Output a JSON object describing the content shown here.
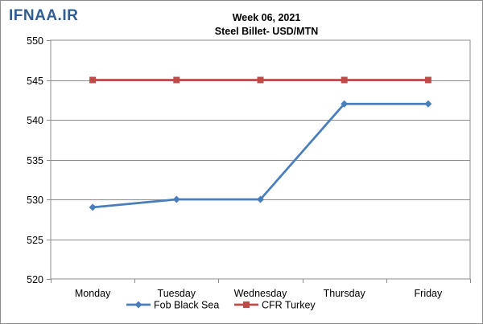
{
  "watermark": "IFNAA.IR",
  "chart_data": {
    "type": "line",
    "title": "Week 06, 2021",
    "subtitle": "Steel Billet- USD/MTN",
    "categories": [
      "Monday",
      "Tuesday",
      "Wednesday",
      "Thursday",
      "Friday"
    ],
    "series": [
      {
        "name": "Fob Black Sea",
        "values": [
          529,
          530,
          530,
          542,
          542
        ],
        "color": "#4a7ebb",
        "marker": "diamond"
      },
      {
        "name": "CFR Turkey",
        "values": [
          545,
          545,
          545,
          545,
          545
        ],
        "color": "#be4b48",
        "marker": "square"
      }
    ],
    "ylim": [
      520,
      550
    ],
    "yticks": [
      520,
      525,
      530,
      535,
      540,
      545,
      550
    ],
    "grid": true,
    "legend": "bottom"
  }
}
